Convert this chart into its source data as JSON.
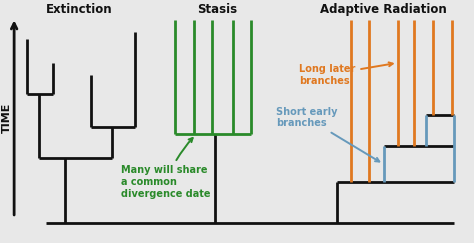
{
  "bg_color": "#e8e8e8",
  "title_extinction": "Extinction",
  "title_stasis": "Stasis",
  "title_adaptive": "Adaptive Radiation",
  "ylabel": "TIME",
  "color_black": "#111111",
  "color_green": "#2a8a2a",
  "color_orange": "#e07820",
  "color_blue": "#6699bb",
  "annotation_green": "Many will share\na common\ndivergence date",
  "annotation_orange": "Long later\nbranches",
  "annotation_blue": "Short early\nbranches",
  "lw": 2.0
}
